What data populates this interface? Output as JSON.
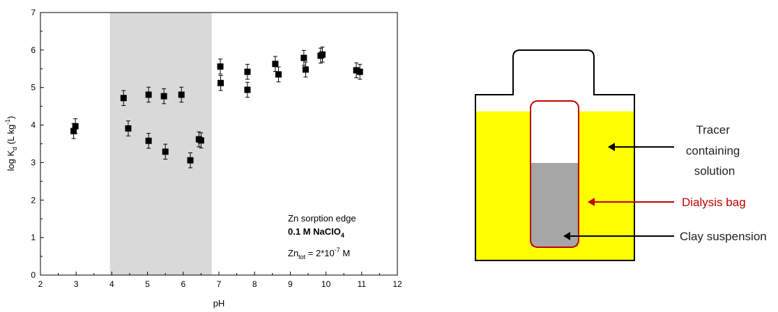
{
  "chart_data": {
    "type": "scatter",
    "title": "",
    "xlabel": "pH",
    "ylabel": {
      "base": "log K",
      "sub": "d",
      "unit_open": " (L kg",
      "sup": "-1",
      "unit_close": ")"
    },
    "xlim": [
      2,
      12
    ],
    "ylim": [
      0,
      7
    ],
    "x_ticks": [
      "2",
      "3",
      "4",
      "5",
      "6",
      "7",
      "8",
      "9",
      "10",
      "11",
      "12"
    ],
    "y_ticks": [
      "0",
      "1",
      "2",
      "3",
      "4",
      "5",
      "6",
      "7"
    ],
    "grid": false,
    "shaded_region": {
      "x_start": 3.95,
      "x_end": 6.8,
      "color": "#d9d9d9"
    },
    "marker_color": "#000000",
    "points": [
      {
        "x": 2.93,
        "y": 3.84,
        "err": 0.2
      },
      {
        "x": 2.98,
        "y": 3.97,
        "err": 0.2
      },
      {
        "x": 4.33,
        "y": 4.72,
        "err": 0.2
      },
      {
        "x": 4.46,
        "y": 3.91,
        "err": 0.2
      },
      {
        "x": 5.03,
        "y": 4.81,
        "err": 0.2
      },
      {
        "x": 5.03,
        "y": 3.58,
        "err": 0.2
      },
      {
        "x": 5.46,
        "y": 4.77,
        "err": 0.2
      },
      {
        "x": 5.5,
        "y": 3.29,
        "err": 0.2
      },
      {
        "x": 5.95,
        "y": 4.81,
        "err": 0.2
      },
      {
        "x": 6.2,
        "y": 3.06,
        "err": 0.2
      },
      {
        "x": 6.44,
        "y": 3.62,
        "err": 0.2
      },
      {
        "x": 6.5,
        "y": 3.59,
        "err": 0.2
      },
      {
        "x": 7.04,
        "y": 5.56,
        "err": 0.2
      },
      {
        "x": 7.05,
        "y": 5.12,
        "err": 0.2
      },
      {
        "x": 7.8,
        "y": 5.42,
        "err": 0.2
      },
      {
        "x": 7.8,
        "y": 4.94,
        "err": 0.2
      },
      {
        "x": 8.58,
        "y": 5.63,
        "err": 0.2
      },
      {
        "x": 8.67,
        "y": 5.35,
        "err": 0.2
      },
      {
        "x": 9.38,
        "y": 5.79,
        "err": 0.2
      },
      {
        "x": 9.43,
        "y": 5.48,
        "err": 0.2
      },
      {
        "x": 9.85,
        "y": 5.85,
        "err": 0.2
      },
      {
        "x": 9.9,
        "y": 5.88,
        "err": 0.2
      },
      {
        "x": 10.85,
        "y": 5.46,
        "err": 0.2
      },
      {
        "x": 10.95,
        "y": 5.42,
        "err": 0.2
      }
    ],
    "annotation": {
      "line1": "Zn sorption edge",
      "line2": {
        "text": "0.1 M NaClO",
        "sub": "4"
      },
      "line3": {
        "base": "Zn",
        "sub": "tot",
        "mid": " = 2*10",
        "sup": "-7",
        "end": " M"
      }
    }
  },
  "diagram": {
    "liquid_color": "#ffff00",
    "bag_color": "#c00000",
    "clay_color": "#a6a6a6",
    "labels": {
      "tracer": [
        "Tracer",
        "containing",
        "solution"
      ],
      "dialysis": "Dialysis bag",
      "clay": "Clay suspension"
    }
  }
}
